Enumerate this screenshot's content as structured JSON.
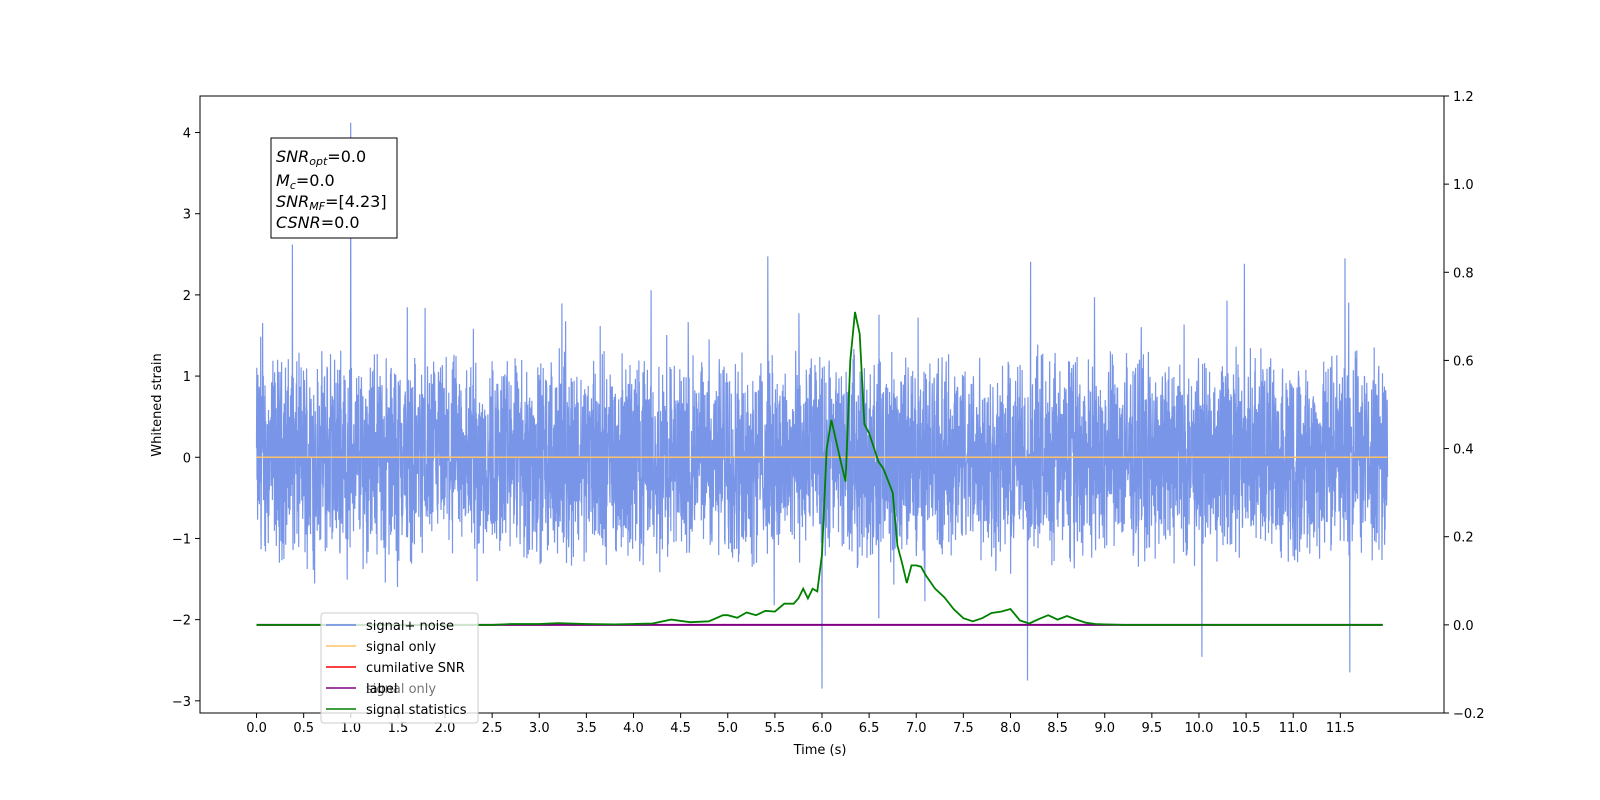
{
  "chart_data": {
    "type": "line",
    "xlabel": "Time (s)",
    "ylabel": "Whitened strain",
    "xlim": [
      -0.6,
      12.6
    ],
    "ylim": [
      -3.15,
      4.45
    ],
    "y2lim": [
      -0.2,
      1.2
    ],
    "x_ticks": [
      "0.0",
      "0.5",
      "1.0",
      "1.5",
      "2.0",
      "2.5",
      "3.0",
      "3.5",
      "4.0",
      "4.5",
      "5.0",
      "5.5",
      "6.0",
      "6.5",
      "7.0",
      "7.5",
      "8.0",
      "8.5",
      "9.0",
      "9.5",
      "10.0",
      "10.5",
      "11.0",
      "11.5"
    ],
    "y_ticks": [
      "−3",
      "−2",
      "−1",
      "0",
      "1",
      "2",
      "3",
      "4"
    ],
    "y2_ticks": [
      "−0.2",
      "0.0",
      "0.2",
      "0.4",
      "0.6",
      "0.8",
      "1.0",
      "1.2"
    ],
    "stats_box": {
      "line1_sym": "SNR",
      "line1_sub": "opt",
      "line1_val": "=0.0",
      "line2_sym": "M",
      "line2_sub": "c",
      "line2_val": "=0.0",
      "line3_sym": "SNR",
      "line3_sub": "MF",
      "line3_val": "=[4.23]",
      "line4_sym": "CSNR",
      "line4_val": "=0.0"
    },
    "legend": {
      "placement": "lower-left",
      "overlapping_text": "signal only",
      "entries": [
        {
          "label": "signal+ noise",
          "color": "#6a89e6"
        },
        {
          "label": "signal only",
          "color": "#ffc266"
        },
        {
          "label": "cumilative SNR",
          "color": "#ff0000"
        },
        {
          "label": "label",
          "color": "#800080"
        },
        {
          "label": "signal statistics",
          "color": "#008000"
        }
      ]
    },
    "series": [
      {
        "name": "signal+ noise",
        "axis": "left",
        "color": "#6a89e6",
        "description": "dense noise time series, 0–12 s, bulk within ±1.5, peaks to ~4.1 near 1.0 s",
        "x_range": [
          0.0,
          12.0
        ],
        "notable_peaks": [
          [
            0.38,
            2.62
          ],
          [
            1.0,
            4.12
          ],
          [
            6.0,
            -2.85
          ],
          [
            8.18,
            -2.75
          ],
          [
            11.6,
            -2.65
          ],
          [
            11.55,
            2.45
          ]
        ]
      },
      {
        "name": "signal only",
        "axis": "left",
        "color": "#ffc266",
        "x": [
          0.0,
          12.0
        ],
        "y": [
          0.0,
          0.0
        ]
      },
      {
        "name": "label",
        "axis": "right",
        "color": "#800080",
        "x": [
          0.0,
          11.95
        ],
        "y": [
          0.0,
          0.0
        ]
      },
      {
        "name": "signal statistics",
        "axis": "right",
        "color": "#008000",
        "x": [
          0.0,
          1.0,
          2.0,
          2.5,
          2.7,
          3.0,
          3.2,
          3.5,
          3.8,
          4.0,
          4.2,
          4.4,
          4.6,
          4.8,
          4.95,
          5.0,
          5.1,
          5.2,
          5.3,
          5.4,
          5.5,
          5.6,
          5.7,
          5.75,
          5.8,
          5.85,
          5.9,
          5.95,
          6.0,
          6.05,
          6.1,
          6.2,
          6.25,
          6.3,
          6.35,
          6.4,
          6.45,
          6.5,
          6.6,
          6.65,
          6.75,
          6.8,
          6.85,
          6.9,
          6.95,
          7.0,
          7.05,
          7.1,
          7.2,
          7.3,
          7.4,
          7.5,
          7.6,
          7.7,
          7.8,
          7.9,
          8.0,
          8.1,
          8.2,
          8.3,
          8.4,
          8.5,
          8.6,
          8.7,
          8.8,
          8.9,
          9.0,
          9.2,
          9.5,
          10.0,
          11.0,
          11.95
        ],
        "y": [
          0.0,
          0.0,
          0.0,
          0.0,
          0.002,
          0.002,
          0.004,
          0.002,
          0.001,
          0.002,
          0.003,
          0.012,
          0.006,
          0.008,
          0.022,
          0.022,
          0.016,
          0.028,
          0.022,
          0.032,
          0.03,
          0.048,
          0.048,
          0.06,
          0.082,
          0.06,
          0.082,
          0.076,
          0.16,
          0.4,
          0.465,
          0.37,
          0.325,
          0.6,
          0.71,
          0.66,
          0.455,
          0.435,
          0.37,
          0.355,
          0.3,
          0.18,
          0.14,
          0.095,
          0.135,
          0.135,
          0.132,
          0.113,
          0.082,
          0.062,
          0.035,
          0.015,
          0.008,
          0.015,
          0.027,
          0.03,
          0.036,
          0.01,
          0.003,
          0.013,
          0.022,
          0.012,
          0.02,
          0.012,
          0.005,
          0.002,
          0.001,
          0.0,
          0.0,
          0.0,
          0.0,
          0.0
        ]
      }
    ]
  }
}
